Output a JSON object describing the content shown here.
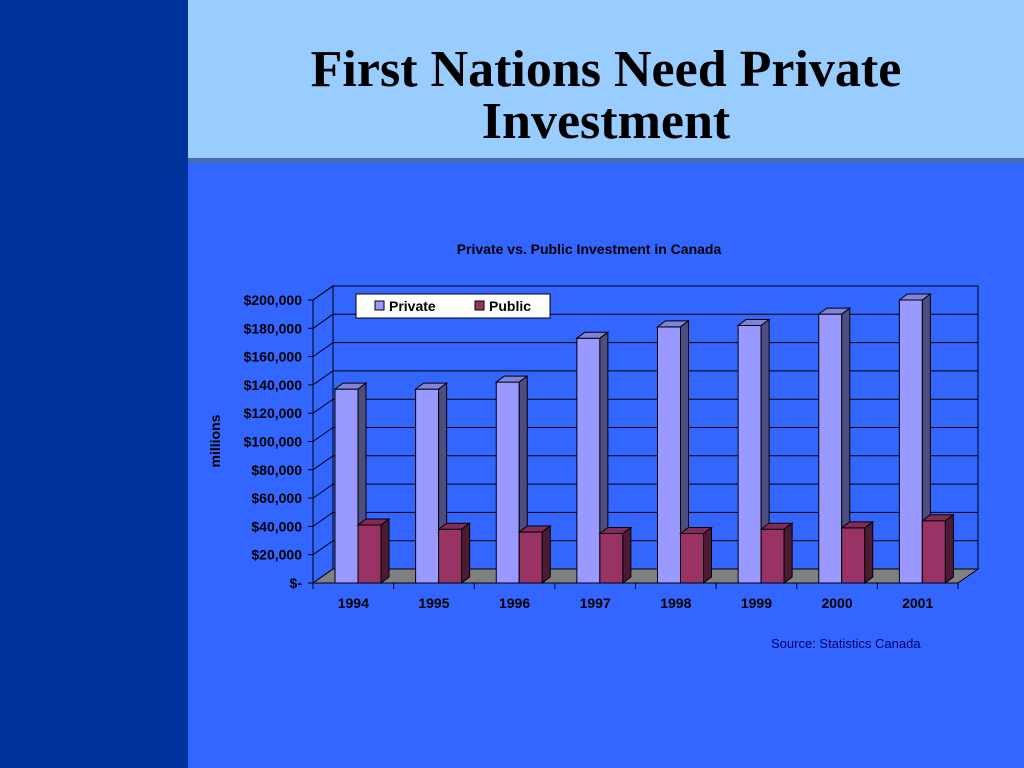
{
  "slide": {
    "title_line1": "First Nations Need Private",
    "title_line2": "Investment",
    "source": "Source: Statistics Canada"
  },
  "chart_data": {
    "type": "bar",
    "title": "Private vs. Public Investment in Canada",
    "ylabel": "millions",
    "xlabel": "",
    "categories": [
      "1994",
      "1995",
      "1996",
      "1997",
      "1998",
      "1999",
      "2000",
      "2001"
    ],
    "series": [
      {
        "name": "Private",
        "color": "#9999ff",
        "values": [
          137000,
          137000,
          142000,
          173000,
          181000,
          182000,
          190000,
          200000
        ]
      },
      {
        "name": "Public",
        "color": "#993366",
        "values": [
          41000,
          38000,
          36000,
          35000,
          35000,
          38000,
          39000,
          44000
        ]
      }
    ],
    "ylim": [
      0,
      200000
    ],
    "yticks": [
      0,
      20000,
      40000,
      60000,
      80000,
      100000,
      120000,
      140000,
      160000,
      180000,
      200000
    ],
    "ytick_labels": [
      "$-",
      "$20,000",
      "$40,000",
      "$60,000",
      "$80,000",
      "$100,000",
      "$120,000",
      "$140,000",
      "$160,000",
      "$180,000",
      "$200,000"
    ],
    "grid": true,
    "legend": "top-left"
  }
}
